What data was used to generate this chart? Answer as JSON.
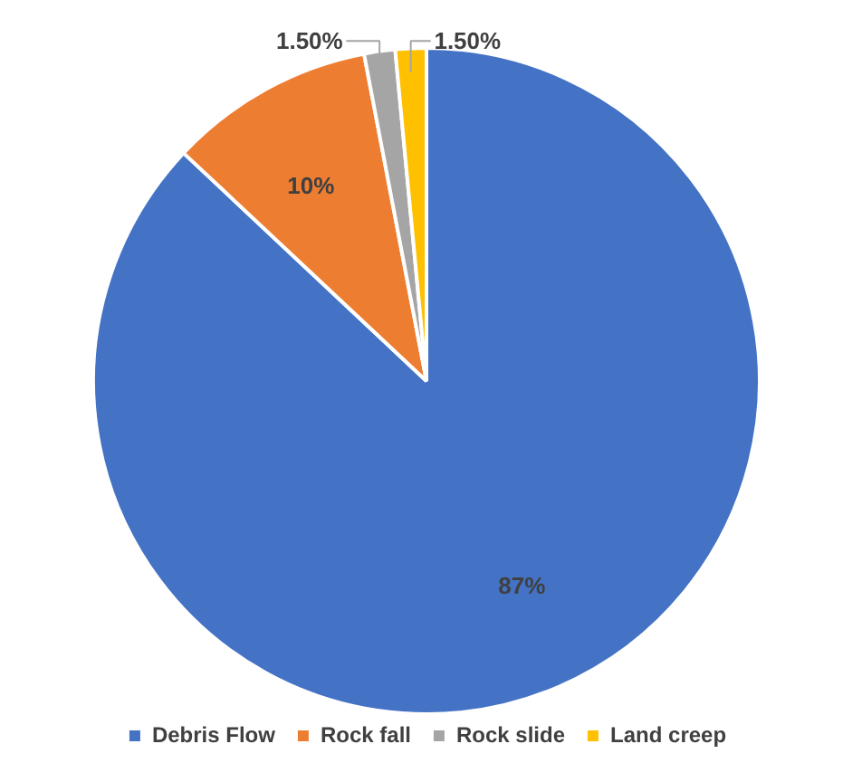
{
  "chart_data": {
    "type": "pie",
    "categories": [
      "Debris Flow",
      "Rock fall",
      "Rock slide",
      "Land creep"
    ],
    "values": [
      87,
      10,
      1.5,
      1.5
    ],
    "colors": [
      "#4472c4",
      "#ed7d31",
      "#a5a5a5",
      "#ffc000"
    ],
    "value_labels": [
      "87%",
      "10%",
      "1.50%",
      "1.50%"
    ],
    "legend": "bottom"
  }
}
